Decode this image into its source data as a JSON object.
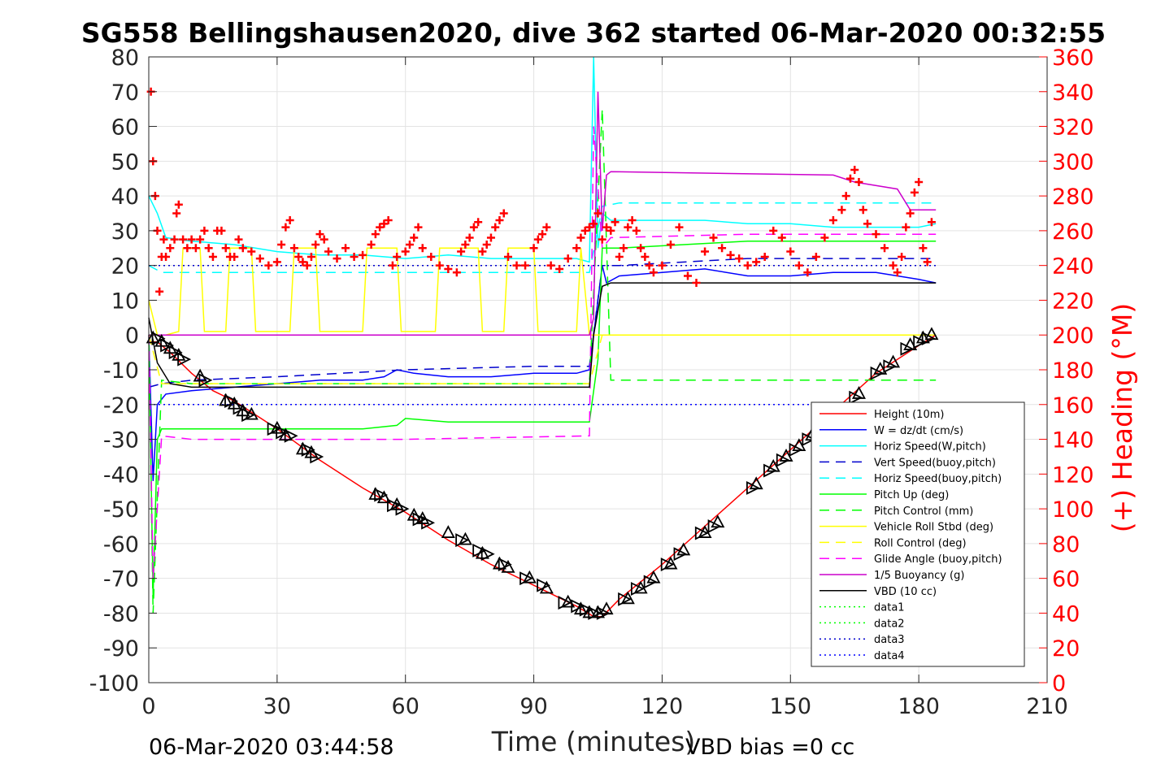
{
  "chart_data": {
    "type": "line",
    "title": "SG558 Bellingshausen2020, dive 362 started 06-Mar-2020 00:32:55",
    "xlabel": "Time (minutes)",
    "ylabel_right": "(+) Heading (°M)",
    "footer_left": "06-Mar-2020 03:44:58",
    "footer_right": "VBD bias =0 cc",
    "xlim": [
      0,
      210
    ],
    "ylim": [
      -100,
      80
    ],
    "ylim_right": [
      0,
      360
    ],
    "x_ticks": [
      "0",
      "30",
      "60",
      "90",
      "120",
      "150",
      "180",
      "210"
    ],
    "y_ticks": [
      "-100",
      "-90",
      "-80",
      "-70",
      "-60",
      "-50",
      "-40",
      "-30",
      "-20",
      "-10",
      "0",
      "10",
      "20",
      "30",
      "40",
      "50",
      "60",
      "70",
      "80"
    ],
    "y_ticks_right": [
      "0",
      "20",
      "40",
      "60",
      "80",
      "100",
      "120",
      "140",
      "160",
      "180",
      "200",
      "220",
      "240",
      "260",
      "280",
      "300",
      "320",
      "340",
      "360"
    ],
    "grid": true,
    "legend_position": "bottom-right",
    "colors": {
      "height": "#ff0000",
      "w": "#0000ff",
      "hspeed": "#00ffff",
      "vspeed": "#0000cd",
      "pitch": "#00ff00",
      "roll": "#ffff00",
      "glide": "#ff00ff",
      "buoy": "#cc00cc",
      "vbd": "#000000",
      "heading": "#ff0000"
    },
    "series": [
      {
        "name": "Height (10m)",
        "style": "solid",
        "color": "#ff0000",
        "x": [
          0,
          2,
          5,
          10,
          15,
          20,
          30,
          40,
          50,
          60,
          70,
          80,
          90,
          100,
          104,
          106,
          110,
          120,
          130,
          140,
          150,
          160,
          170,
          180,
          184
        ],
        "y": [
          -2,
          -2,
          -5,
          -11,
          -16,
          -19,
          -27,
          -36,
          -44,
          -51,
          -59,
          -66,
          -72,
          -78,
          -81,
          -81,
          -76,
          -66,
          -55,
          -44,
          -33,
          -22,
          -11,
          -3,
          0
        ]
      },
      {
        "name": "W = dz/dt (cm/s)",
        "style": "solid",
        "color": "#0000ff",
        "x": [
          0,
          1,
          2,
          4,
          10,
          20,
          30,
          40,
          50,
          55,
          58,
          62,
          70,
          80,
          90,
          100,
          103,
          104,
          105,
          106,
          107,
          110,
          120,
          130,
          140,
          150,
          160,
          170,
          180,
          184
        ],
        "y": [
          0,
          -42,
          -20,
          -17,
          -16,
          -15,
          -14,
          -13,
          -13,
          -12,
          -10,
          -11,
          -12,
          -12,
          -11,
          -11,
          -10,
          0,
          10,
          20,
          15,
          17,
          18,
          19,
          17,
          17,
          18,
          18,
          16,
          15
        ]
      },
      {
        "name": "Horiz Speed(W,pitch)",
        "style": "solid",
        "color": "#00ffff",
        "x": [
          0,
          2,
          4,
          10,
          20,
          30,
          40,
          50,
          60,
          70,
          80,
          90,
          100,
          103,
          104,
          105,
          106,
          108,
          120,
          130,
          140,
          150,
          160,
          170,
          180,
          184
        ],
        "y": [
          40,
          35,
          28,
          27,
          26,
          24,
          23,
          23,
          22,
          23,
          22,
          22,
          22,
          21,
          80,
          25,
          35,
          33,
          33,
          33,
          32,
          32,
          31,
          31,
          31,
          32
        ]
      },
      {
        "name": "Vert Speed(buoy,pitch)",
        "style": "dashed",
        "color": "#0000cd",
        "x": [
          0,
          3,
          10,
          30,
          60,
          90,
          103,
          106,
          110,
          140,
          184
        ],
        "y": [
          -15,
          -14,
          -13,
          -12,
          -10,
          -9,
          -9,
          20,
          20,
          22,
          22
        ]
      },
      {
        "name": "Horiz Speed(buoy,pitch)",
        "style": "dashed",
        "color": "#00ffff",
        "x": [
          0,
          3,
          10,
          60,
          103,
          106,
          110,
          140,
          184
        ],
        "y": [
          20,
          18,
          18,
          18,
          18,
          37,
          38,
          38,
          38
        ]
      },
      {
        "name": "Pitch Up (deg)",
        "style": "solid",
        "color": "#00ff00",
        "x": [
          0,
          1,
          2,
          3,
          10,
          40,
          50,
          58,
          60,
          70,
          80,
          90,
          100,
          103,
          105,
          106,
          107,
          110,
          140,
          184
        ],
        "y": [
          0,
          -75,
          -30,
          -27,
          -27,
          -27,
          -27,
          -26,
          -24,
          -25,
          -25,
          -25,
          -25,
          -25,
          -7,
          25,
          25,
          25,
          27,
          27
        ]
      },
      {
        "name": "Pitch Control (mm)",
        "style": "dashed",
        "color": "#00ff00",
        "x": [
          0,
          1,
          3,
          10,
          103,
          106,
          108,
          150,
          184
        ],
        "y": [
          0,
          -80,
          -13,
          -14,
          -14,
          65,
          -13,
          -13,
          -13
        ]
      },
      {
        "name": "Vehicle Roll Stbd (deg)",
        "style": "solid",
        "color": "#ffff00",
        "x": [
          0,
          2,
          4,
          7,
          8,
          12,
          13,
          18,
          19,
          24,
          25,
          33,
          34,
          39,
          40,
          50,
          51,
          58,
          59,
          67,
          68,
          77,
          78,
          83,
          84,
          90,
          91,
          100,
          101,
          103,
          106,
          120,
          150,
          184
        ],
        "y": [
          10,
          0,
          0,
          1,
          25,
          25,
          1,
          1,
          25,
          25,
          1,
          1,
          25,
          25,
          1,
          1,
          25,
          25,
          1,
          1,
          25,
          25,
          1,
          1,
          25,
          25,
          1,
          1,
          25,
          0,
          0,
          0,
          0,
          0
        ]
      },
      {
        "name": "Roll Control (deg)",
        "style": "dashed",
        "color": "#ffff00",
        "x": [
          0,
          3,
          10,
          50,
          103,
          106,
          150,
          184
        ],
        "y": [
          0,
          -14,
          -14,
          -14,
          -14,
          0,
          0,
          0
        ]
      },
      {
        "name": "Glide Angle (buoy,pitch)",
        "style": "dashed",
        "color": "#ff00ff",
        "x": [
          0,
          1,
          3,
          10,
          60,
          103,
          104,
          106,
          108,
          140,
          184
        ],
        "y": [
          0,
          -70,
          -29,
          -30,
          -30,
          -29,
          60,
          25,
          28,
          29,
          29
        ]
      },
      {
        "name": "1/5 Buoyancy (g)",
        "style": "solid",
        "color": "#cc00cc",
        "x": [
          0,
          103,
          104,
          105,
          106,
          107,
          108,
          160,
          165,
          175,
          178,
          184
        ],
        "y": [
          0,
          0,
          5,
          70,
          30,
          46,
          47,
          46,
          44,
          42,
          36,
          36
        ]
      },
      {
        "name": "VBD (10 cc)",
        "style": "solid",
        "color": "#000000",
        "x": [
          0,
          2,
          5,
          10,
          20,
          30,
          60,
          103,
          104,
          106,
          108,
          184
        ],
        "y": [
          5,
          -8,
          -14,
          -15,
          -15,
          -15,
          -15,
          -15,
          0,
          14,
          15,
          15
        ]
      },
      {
        "name": "data1",
        "style": "dotted",
        "color": "#00ff00",
        "x": [],
        "y": []
      },
      {
        "name": "data2",
        "style": "dotted",
        "color": "#00ff00",
        "x": [],
        "y": []
      },
      {
        "name": "data3",
        "style": "dotted",
        "color": "#0000cd",
        "x": [
          0,
          184
        ],
        "y": [
          20,
          20
        ]
      },
      {
        "name": "data4",
        "style": "dotted",
        "color": "#0000ff",
        "x": [
          0,
          184
        ],
        "y": [
          -20,
          -20
        ]
      }
    ],
    "heading_points": {
      "x": [
        0.5,
        1,
        1.5,
        2,
        2.5,
        3,
        3.5,
        4,
        5,
        6,
        6.5,
        7,
        8,
        9,
        10,
        11,
        12,
        13,
        14,
        15,
        16,
        17,
        18,
        19,
        20,
        21,
        22,
        24,
        26,
        28,
        30,
        31,
        32,
        33,
        34,
        35,
        36,
        37,
        38,
        39,
        40,
        41,
        42,
        44,
        46,
        48,
        50,
        52,
        53,
        54,
        55,
        56,
        57,
        58,
        60,
        61,
        62,
        63,
        64,
        66,
        68,
        70,
        72,
        73,
        74,
        75,
        76,
        77,
        78,
        79,
        80,
        81,
        82,
        83,
        84,
        86,
        88,
        90,
        91,
        92,
        93,
        94,
        96,
        98,
        100,
        101,
        102,
        103,
        104,
        105,
        106,
        107,
        108,
        109,
        110,
        111,
        112,
        113,
        114,
        115,
        116,
        117,
        118,
        120,
        122,
        124,
        126,
        128,
        130,
        132,
        134,
        136,
        138,
        140,
        142,
        144,
        146,
        148,
        150,
        152,
        154,
        156,
        158,
        160,
        162,
        163,
        164,
        165,
        166,
        167,
        168,
        170,
        172,
        174,
        175,
        176,
        177,
        178,
        179,
        180,
        181,
        182,
        183
      ],
      "y": [
        340,
        300,
        280,
        260,
        225,
        245,
        255,
        245,
        250,
        255,
        270,
        275,
        255,
        250,
        255,
        250,
        255,
        260,
        250,
        245,
        260,
        260,
        250,
        245,
        245,
        255,
        250,
        248,
        244,
        240,
        242,
        252,
        262,
        266,
        250,
        245,
        242,
        240,
        245,
        252,
        258,
        255,
        248,
        244,
        250,
        245,
        246,
        252,
        258,
        262,
        264,
        266,
        240,
        245,
        248,
        252,
        256,
        262,
        250,
        245,
        240,
        238,
        236,
        248,
        252,
        256,
        262,
        265,
        248,
        252,
        256,
        262,
        266,
        270,
        245,
        240,
        240,
        250,
        255,
        258,
        262,
        240,
        238,
        244,
        250,
        256,
        260,
        262,
        264,
        270,
        255,
        262,
        260,
        265,
        245,
        250,
        262,
        266,
        260,
        250,
        245,
        240,
        236,
        240,
        252,
        262,
        234,
        230,
        248,
        256,
        250,
        246,
        244,
        240,
        242,
        245,
        260,
        256,
        248,
        240,
        236,
        245,
        256,
        266,
        272,
        280,
        290,
        295,
        288,
        272,
        264,
        258,
        250,
        240,
        236,
        245,
        262,
        270,
        282,
        288,
        250,
        242,
        265
      ]
    },
    "markers": {
      "x": [
        1,
        2,
        3,
        4,
        5,
        6,
        7,
        8,
        12,
        13,
        18,
        19,
        20,
        21,
        22,
        23,
        24,
        29,
        30,
        31,
        32,
        33,
        36,
        37,
        38,
        39,
        53,
        54,
        55,
        57,
        58,
        59,
        62,
        63,
        64,
        65,
        70,
        73,
        74,
        77,
        78,
        79,
        82,
        83,
        84,
        88,
        89,
        92,
        93,
        97,
        98,
        100,
        101,
        102,
        103,
        104,
        105,
        106,
        107,
        111,
        112,
        114,
        115,
        117,
        118,
        121,
        122,
        124,
        125,
        129,
        130,
        132,
        133,
        141,
        142,
        145,
        146,
        148,
        149,
        151,
        152,
        154,
        155,
        165,
        166,
        170,
        171,
        173,
        174,
        177,
        178,
        180,
        181,
        182,
        183
      ],
      "y": [
        -1,
        -1,
        -2,
        -3,
        -4,
        -5,
        -6,
        -7,
        -12,
        -13,
        -19,
        -19,
        -20,
        -21,
        -22,
        -23,
        -23,
        -27,
        -27,
        -28,
        -29,
        -29,
        -33,
        -33,
        -34,
        -35,
        -46,
        -46,
        -47,
        -49,
        -49,
        -50,
        -52,
        -53,
        -53,
        -54,
        -57,
        -59,
        -59,
        -62,
        -63,
        -63,
        -66,
        -66,
        -67,
        -70,
        -70,
        -72,
        -73,
        -77,
        -77,
        -78,
        -79,
        -79,
        -80,
        -80,
        -80,
        -80,
        -79,
        -76,
        -76,
        -73,
        -73,
        -71,
        -70,
        -66,
        -66,
        -63,
        -62,
        -57,
        -57,
        -55,
        -54,
        -44,
        -43,
        -39,
        -38,
        -36,
        -35,
        -33,
        -32,
        -30,
        -29,
        -18,
        -17,
        -11,
        -10,
        -9,
        -8,
        -4,
        -3,
        -2,
        -1,
        -1,
        0
      ]
    }
  }
}
